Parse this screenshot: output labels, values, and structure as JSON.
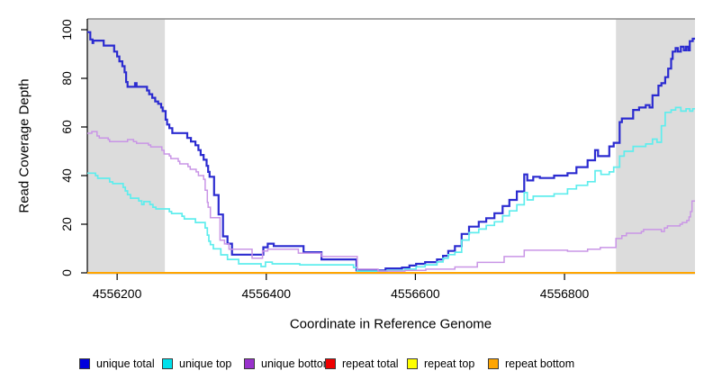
{
  "colors": {
    "background": "#ffffff",
    "shaded_region": "#DCDCDC",
    "plot_top_border": "#8A8A8A",
    "axis": "#000000"
  },
  "legend": {
    "items": [
      {
        "label": "unique total",
        "swatch_color": "#0000DD"
      },
      {
        "label": "unique top",
        "swatch_color": "#00E0EC"
      },
      {
        "label": "unique bottom",
        "swatch_color": "#9932CC"
      },
      {
        "label": "repeat total",
        "swatch_color": "#EE0000"
      },
      {
        "label": "repeat top",
        "swatch_color": "#FFFF00"
      },
      {
        "label": "repeat bottom",
        "swatch_color": "#FFA500"
      }
    ]
  },
  "chart_data": {
    "type": "line",
    "subtype": "step",
    "title": "",
    "xlabel": "Coordinate in Reference Genome",
    "ylabel": "Read Coverage Depth",
    "xlim": [
      4556160,
      4556975
    ],
    "ylim": [
      0,
      100
    ],
    "x_ticks": [
      4556200,
      4556400,
      4556600,
      4556800
    ],
    "y_ticks": [
      0,
      20,
      40,
      60,
      80,
      100
    ],
    "grid": false,
    "legend_position": "bottom",
    "shaded_regions": [
      {
        "start": 4556160,
        "end": 4556264
      },
      {
        "start": 4556869,
        "end": 4556975
      }
    ],
    "series": [
      {
        "name": "unique total",
        "line_color": "#2B2BD0",
        "line_width": 2.2,
        "points": [
          [
            4556160,
            99
          ],
          [
            4556164,
            96
          ],
          [
            4556167,
            94.5
          ],
          [
            4556168,
            95.5
          ],
          [
            4556182,
            93.5
          ],
          [
            4556196,
            91
          ],
          [
            4556200,
            89
          ],
          [
            4556203,
            87
          ],
          [
            4556207,
            85
          ],
          [
            4556210,
            82.5
          ],
          [
            4556212,
            78.5
          ],
          [
            4556214,
            76.5
          ],
          [
            4556224,
            78
          ],
          [
            4556226,
            76.5
          ],
          [
            4556240,
            75
          ],
          [
            4556243,
            73.5
          ],
          [
            4556247,
            72
          ],
          [
            4556251,
            70.5
          ],
          [
            4556255,
            69.5
          ],
          [
            4556259,
            68
          ],
          [
            4556261,
            66.5
          ],
          [
            4556265,
            63
          ],
          [
            4556267,
            61
          ],
          [
            4556270,
            59.5
          ],
          [
            4556274,
            57.5
          ],
          [
            4556294,
            55.5
          ],
          [
            4556299,
            54
          ],
          [
            4556305,
            52.5
          ],
          [
            4556309,
            50.5
          ],
          [
            4556312,
            48.5
          ],
          [
            4556316,
            46.5
          ],
          [
            4556320,
            44
          ],
          [
            4556322,
            41.5
          ],
          [
            4556324,
            39.5
          ],
          [
            4556330,
            32
          ],
          [
            4556336,
            24
          ],
          [
            4556342,
            15
          ],
          [
            4556348,
            12
          ],
          [
            4556354,
            7.5
          ],
          [
            4556396,
            10.5
          ],
          [
            4556402,
            12
          ],
          [
            4556410,
            11
          ],
          [
            4556450,
            8.5
          ],
          [
            4556474,
            5.5
          ],
          [
            4556521,
            1
          ],
          [
            4556560,
            1.8
          ],
          [
            4556582,
            2.2
          ],
          [
            4556592,
            3
          ],
          [
            4556601,
            3.7
          ],
          [
            4556613,
            4.4
          ],
          [
            4556629,
            5.5
          ],
          [
            4556637,
            7
          ],
          [
            4556644,
            9
          ],
          [
            4556653,
            11
          ],
          [
            4556662,
            16
          ],
          [
            4556672,
            19
          ],
          [
            4556685,
            21
          ],
          [
            4556695,
            22.5
          ],
          [
            4556706,
            24.5
          ],
          [
            4556717,
            27.5
          ],
          [
            4556726,
            30
          ],
          [
            4556736,
            33.5
          ],
          [
            4556746,
            40.5
          ],
          [
            4556750,
            38
          ],
          [
            4556758,
            39.5
          ],
          [
            4556767,
            39
          ],
          [
            4556786,
            40
          ],
          [
            4556804,
            41
          ],
          [
            4556816,
            43.5
          ],
          [
            4556831,
            46.3
          ],
          [
            4556841,
            50.5
          ],
          [
            4556845,
            48
          ],
          [
            4556860,
            52
          ],
          [
            4556866,
            53.5
          ],
          [
            4556874,
            62
          ],
          [
            4556877,
            63.5
          ],
          [
            4556892,
            67
          ],
          [
            4556900,
            68
          ],
          [
            4556909,
            69
          ],
          [
            4556914,
            68
          ],
          [
            4556918,
            73
          ],
          [
            4556926,
            77
          ],
          [
            4556930,
            78
          ],
          [
            4556935,
            80.5
          ],
          [
            4556939,
            84
          ],
          [
            4556943,
            88
          ],
          [
            4556945,
            91
          ],
          [
            4556949,
            92.5
          ],
          [
            4556952,
            91
          ],
          [
            4556956,
            93
          ],
          [
            4556960,
            91.5
          ],
          [
            4556963,
            93
          ],
          [
            4556966,
            91.5
          ],
          [
            4556968,
            95.3
          ],
          [
            4556972,
            96.3
          ]
        ]
      },
      {
        "name": "unique top",
        "line_color": "#5FEDED",
        "line_width": 1.7,
        "points": [
          [
            4556160,
            41
          ],
          [
            4556171,
            40
          ],
          [
            4556174,
            38.9
          ],
          [
            4556190,
            37.4
          ],
          [
            4556194,
            36.7
          ],
          [
            4556208,
            35.2
          ],
          [
            4556211,
            33.7
          ],
          [
            4556214,
            32.2
          ],
          [
            4556218,
            30.7
          ],
          [
            4556229,
            29.6
          ],
          [
            4556233,
            28.1
          ],
          [
            4556236,
            29.3
          ],
          [
            4556244,
            28.1
          ],
          [
            4556248,
            27
          ],
          [
            4556252,
            26.3
          ],
          [
            4556270,
            25.2
          ],
          [
            4556273,
            24.4
          ],
          [
            4556287,
            23.3
          ],
          [
            4556290,
            22.2
          ],
          [
            4556305,
            20.7
          ],
          [
            4556318,
            18.5
          ],
          [
            4556321,
            15.5
          ],
          [
            4556323,
            13
          ],
          [
            4556325,
            11.6
          ],
          [
            4556329,
            9.9
          ],
          [
            4556339,
            7.4
          ],
          [
            4556348,
            5.5
          ],
          [
            4556363,
            3.7
          ],
          [
            4556393,
            2.6
          ],
          [
            4556399,
            4.4
          ],
          [
            4556408,
            3.7
          ],
          [
            4556445,
            3.3
          ],
          [
            4556517,
            2.2
          ],
          [
            4556522,
            0.7
          ],
          [
            4556562,
            1
          ],
          [
            4556586,
            1.5
          ],
          [
            4556601,
            2.5
          ],
          [
            4556613,
            3.3
          ],
          [
            4556629,
            4.5
          ],
          [
            4556637,
            6
          ],
          [
            4556644,
            7.5
          ],
          [
            4556653,
            8.5
          ],
          [
            4556662,
            13.5
          ],
          [
            4556672,
            16.5
          ],
          [
            4556685,
            18
          ],
          [
            4556695,
            19.5
          ],
          [
            4556706,
            21
          ],
          [
            4556717,
            23.5
          ],
          [
            4556726,
            25.5
          ],
          [
            4556736,
            28
          ],
          [
            4556746,
            33
          ],
          [
            4556750,
            30
          ],
          [
            4556758,
            31.5
          ],
          [
            4556786,
            32.5
          ],
          [
            4556804,
            34.5
          ],
          [
            4556816,
            36
          ],
          [
            4556831,
            37.5
          ],
          [
            4556841,
            42
          ],
          [
            4556849,
            40.5
          ],
          [
            4556860,
            41.5
          ],
          [
            4556866,
            43.5
          ],
          [
            4556874,
            48
          ],
          [
            4556880,
            50
          ],
          [
            4556892,
            52
          ],
          [
            4556909,
            53
          ],
          [
            4556918,
            55
          ],
          [
            4556924,
            53.7
          ],
          [
            4556930,
            60.5
          ],
          [
            4556935,
            66
          ],
          [
            4556943,
            67
          ],
          [
            4556949,
            68
          ],
          [
            4556956,
            66.5
          ],
          [
            4556963,
            67.5
          ],
          [
            4556968,
            66.5
          ],
          [
            4556972,
            67.5
          ]
        ]
      },
      {
        "name": "unique bottom",
        "line_color": "#C995E6",
        "line_width": 1.5,
        "points": [
          [
            4556160,
            57.4
          ],
          [
            4556166,
            58.1
          ],
          [
            4556173,
            56.3
          ],
          [
            4556176,
            55.5
          ],
          [
            4556188,
            54.8
          ],
          [
            4556190,
            54
          ],
          [
            4556214,
            54.8
          ],
          [
            4556222,
            54
          ],
          [
            4556226,
            53.3
          ],
          [
            4556242,
            52.6
          ],
          [
            4556245,
            51.8
          ],
          [
            4556260,
            50.4
          ],
          [
            4556263,
            48.9
          ],
          [
            4556270,
            48.1
          ],
          [
            4556272,
            47
          ],
          [
            4556282,
            45.9
          ],
          [
            4556284,
            44.8
          ],
          [
            4556295,
            43.7
          ],
          [
            4556298,
            42.6
          ],
          [
            4556306,
            41.5
          ],
          [
            4556309,
            40
          ],
          [
            4556316,
            38.5
          ],
          [
            4556318,
            34
          ],
          [
            4556321,
            29
          ],
          [
            4556322,
            27
          ],
          [
            4556325,
            22.7
          ],
          [
            4556338,
            13.4
          ],
          [
            4556344,
            11.9
          ],
          [
            4556350,
            9.7
          ],
          [
            4556381,
            6
          ],
          [
            4556395,
            9
          ],
          [
            4556402,
            9.7
          ],
          [
            4556443,
            8.1
          ],
          [
            4556474,
            6.7
          ],
          [
            4556522,
            1.5
          ],
          [
            4556550,
            0.7
          ],
          [
            4556586,
            1
          ],
          [
            4556614,
            1.5
          ],
          [
            4556653,
            2.4
          ],
          [
            4556683,
            4.3
          ],
          [
            4556719,
            6.7
          ],
          [
            4556746,
            9.3
          ],
          [
            4556804,
            8.9
          ],
          [
            4556831,
            9.7
          ],
          [
            4556848,
            10.4
          ],
          [
            4556869,
            14.1
          ],
          [
            4556877,
            15.3
          ],
          [
            4556883,
            16.3
          ],
          [
            4556903,
            17
          ],
          [
            4556906,
            17.8
          ],
          [
            4556930,
            17
          ],
          [
            4556934,
            18.5
          ],
          [
            4556938,
            19.3
          ],
          [
            4556955,
            20
          ],
          [
            4556958,
            20.7
          ],
          [
            4556964,
            21.5
          ],
          [
            4556967,
            23
          ],
          [
            4556969,
            25.2
          ],
          [
            4556971,
            29.5
          ]
        ]
      },
      {
        "name": "repeat total",
        "line_color": "#CC0000",
        "line_width": 1.5,
        "points": [
          [
            4556160,
            0
          ],
          [
            4556975,
            0
          ]
        ]
      },
      {
        "name": "repeat top",
        "line_color": "#FFFF00",
        "line_width": 1.5,
        "points": [
          [
            4556160,
            0
          ],
          [
            4556975,
            0
          ]
        ]
      },
      {
        "name": "repeat bottom",
        "line_color": "#FFA500",
        "line_width": 2,
        "points": [
          [
            4556160,
            0
          ],
          [
            4556975,
            0
          ]
        ]
      }
    ]
  }
}
